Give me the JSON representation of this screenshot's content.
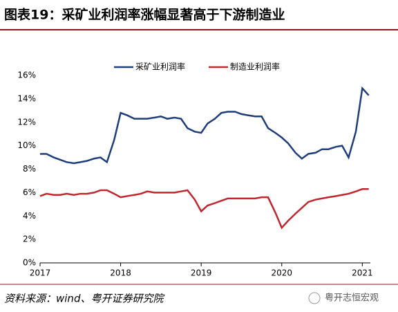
{
  "chart_data": {
    "type": "line",
    "title": "图表19：采矿业利润率涨幅显著高于下游制造业",
    "source": "资料来源：wind、粤开证券研究院",
    "watermark": "粤开志恒宏观",
    "x": [
      2017.0,
      2017.08,
      2017.17,
      2017.25,
      2017.33,
      2017.42,
      2017.5,
      2017.58,
      2017.67,
      2017.75,
      2017.83,
      2017.92,
      2018.0,
      2018.08,
      2018.17,
      2018.25,
      2018.33,
      2018.42,
      2018.5,
      2018.58,
      2018.67,
      2018.75,
      2018.83,
      2018.92,
      2019.0,
      2019.08,
      2019.17,
      2019.25,
      2019.33,
      2019.42,
      2019.5,
      2019.58,
      2019.67,
      2019.75,
      2019.83,
      2019.92,
      2020.0,
      2020.08,
      2020.17,
      2020.25,
      2020.33,
      2020.42,
      2020.5,
      2020.58,
      2020.67,
      2020.75,
      2020.83,
      2020.92,
      2021.0,
      2021.08
    ],
    "series": [
      {
        "name": "采矿业利润率",
        "color": "#1f3d7a",
        "values": [
          9.3,
          9.3,
          9.0,
          8.8,
          8.6,
          8.5,
          8.6,
          8.7,
          8.9,
          9.0,
          8.6,
          10.5,
          12.8,
          12.6,
          12.3,
          12.3,
          12.3,
          12.4,
          12.5,
          12.3,
          12.4,
          12.3,
          11.5,
          11.2,
          11.1,
          11.9,
          12.3,
          12.8,
          12.9,
          12.9,
          12.7,
          12.6,
          12.5,
          12.5,
          11.5,
          11.1,
          10.7,
          10.2,
          9.4,
          8.9,
          9.3,
          9.4,
          9.7,
          9.7,
          9.9,
          10.0,
          9.0,
          11.2,
          14.9,
          14.3
        ]
      },
      {
        "name": "制造业利润率",
        "color": "#c0262d",
        "values": [
          5.7,
          5.9,
          5.8,
          5.8,
          5.9,
          5.8,
          5.9,
          5.9,
          6.0,
          6.2,
          6.2,
          5.9,
          5.6,
          5.7,
          5.8,
          5.9,
          6.1,
          6.0,
          6.0,
          6.0,
          6.0,
          6.1,
          6.2,
          5.4,
          4.4,
          4.9,
          5.1,
          5.3,
          5.5,
          5.5,
          5.5,
          5.5,
          5.5,
          5.6,
          5.6,
          4.3,
          3.0,
          3.6,
          4.2,
          4.7,
          5.2,
          5.4,
          5.5,
          5.6,
          5.7,
          5.8,
          5.9,
          6.1,
          6.3,
          6.3
        ]
      }
    ],
    "xlim": [
      2017,
      2021.1
    ],
    "xticks": [
      2017,
      2018,
      2019,
      2020,
      2021
    ],
    "ylim": [
      0,
      16
    ],
    "yticks": [
      {
        "value": 0,
        "label": "0%"
      },
      {
        "value": 2,
        "label": "2%"
      },
      {
        "value": 4,
        "label": "4%"
      },
      {
        "value": 6,
        "label": "6%"
      },
      {
        "value": 8,
        "label": "8%"
      },
      {
        "value": 10,
        "label": "10%"
      },
      {
        "value": 12,
        "label": "12%"
      },
      {
        "value": 14,
        "label": "14%"
      },
      {
        "value": 16,
        "label": "16%"
      }
    ],
    "legend": "top"
  }
}
